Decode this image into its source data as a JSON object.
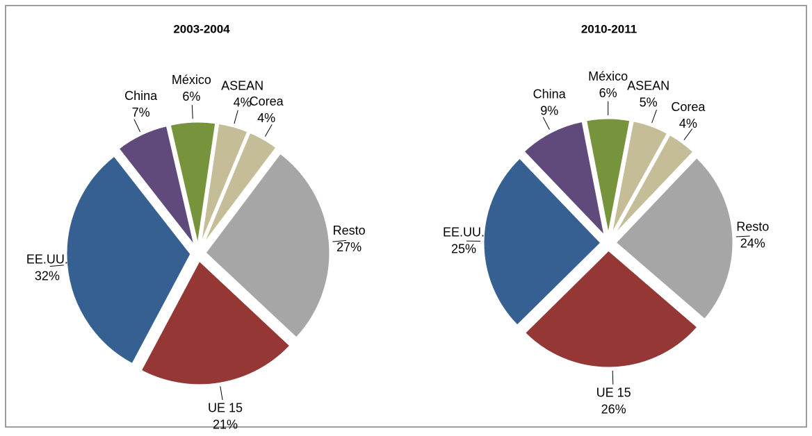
{
  "chart_data": [
    {
      "type": "pie",
      "title": "2003-2004",
      "categories": [
        "México",
        "ASEAN",
        "Corea",
        "Resto",
        "UE 15",
        "EE.UU.",
        "China"
      ],
      "values": [
        6,
        4,
        4,
        27,
        21,
        32,
        7
      ],
      "value_labels": [
        "6%",
        "4%",
        "4%",
        "27%",
        "21%",
        "32%",
        "7%"
      ],
      "colors": [
        "#77933c",
        "#c4bd97",
        "#c4bd97",
        "#a6a6a6",
        "#953735",
        "#376092",
        "#604a7b"
      ]
    },
    {
      "type": "pie",
      "title": "2010-2011",
      "categories": [
        "México",
        "ASEAN",
        "Corea",
        "Resto",
        "UE 15",
        "EE.UU.",
        "China"
      ],
      "values": [
        6,
        5,
        4,
        24,
        26,
        25,
        9
      ],
      "value_labels": [
        "6%",
        "5%",
        "4%",
        "24%",
        "26%",
        "25%",
        "9%"
      ],
      "colors": [
        "#77933c",
        "#c4bd97",
        "#c4bd97",
        "#a6a6a6",
        "#953735",
        "#376092",
        "#604a7b"
      ]
    }
  ]
}
